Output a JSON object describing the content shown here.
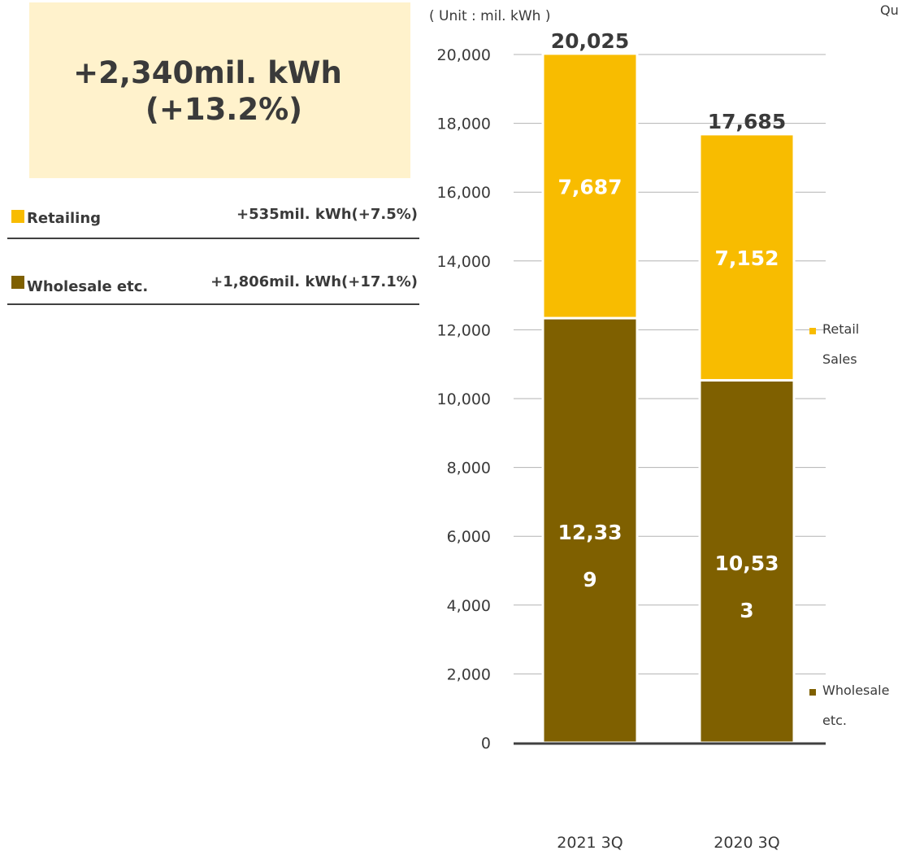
{
  "summary": {
    "line1": "+2,340mil. kWh",
    "line2": "(+13.2%)",
    "background_color": "#fff2cc"
  },
  "breakdown": [
    {
      "label": "Retailing",
      "delta": "+535mil. kWh(+7.5%)",
      "color": "#f8bc00"
    },
    {
      "label": "Wholesale etc.",
      "delta": "+1,806mil. kWh(+17.1%)",
      "color": "#7f6000"
    }
  ],
  "unit_label": "( Unit : mil. kWh )",
  "corner_text": "Qu",
  "chart_data": {
    "type": "bar",
    "stacked": true,
    "categories": [
      "2021 3Q",
      "2020 3Q"
    ],
    "series": [
      {
        "name": "Wholesale etc.",
        "legend_lines": [
          "Wholesale",
          "etc."
        ],
        "values": [
          12339,
          10533
        ],
        "value_labels": [
          [
            "12,33",
            "9"
          ],
          [
            "10,53",
            "3"
          ]
        ],
        "color": "#7f6000"
      },
      {
        "name": "Retail Sales",
        "legend_lines": [
          "Retail",
          "Sales"
        ],
        "values": [
          7687,
          7152
        ],
        "value_labels": [
          [
            "7,687"
          ],
          [
            "7,152"
          ]
        ],
        "color": "#f8bc00"
      }
    ],
    "totals": [
      20025,
      17685
    ],
    "total_labels": [
      "20,025",
      "17,685"
    ],
    "ylim": [
      0,
      20000
    ],
    "yticks": [
      0,
      2000,
      4000,
      6000,
      8000,
      10000,
      12000,
      14000,
      16000,
      18000,
      20000
    ],
    "ytick_labels": [
      "0",
      "2,000",
      "4,000",
      "6,000",
      "8,000",
      "10,000",
      "12,000",
      "14,000",
      "16,000",
      "18,000",
      "20,000"
    ],
    "grid": true,
    "legend_position": "right",
    "title": "",
    "xlabel": "",
    "ylabel": ""
  }
}
